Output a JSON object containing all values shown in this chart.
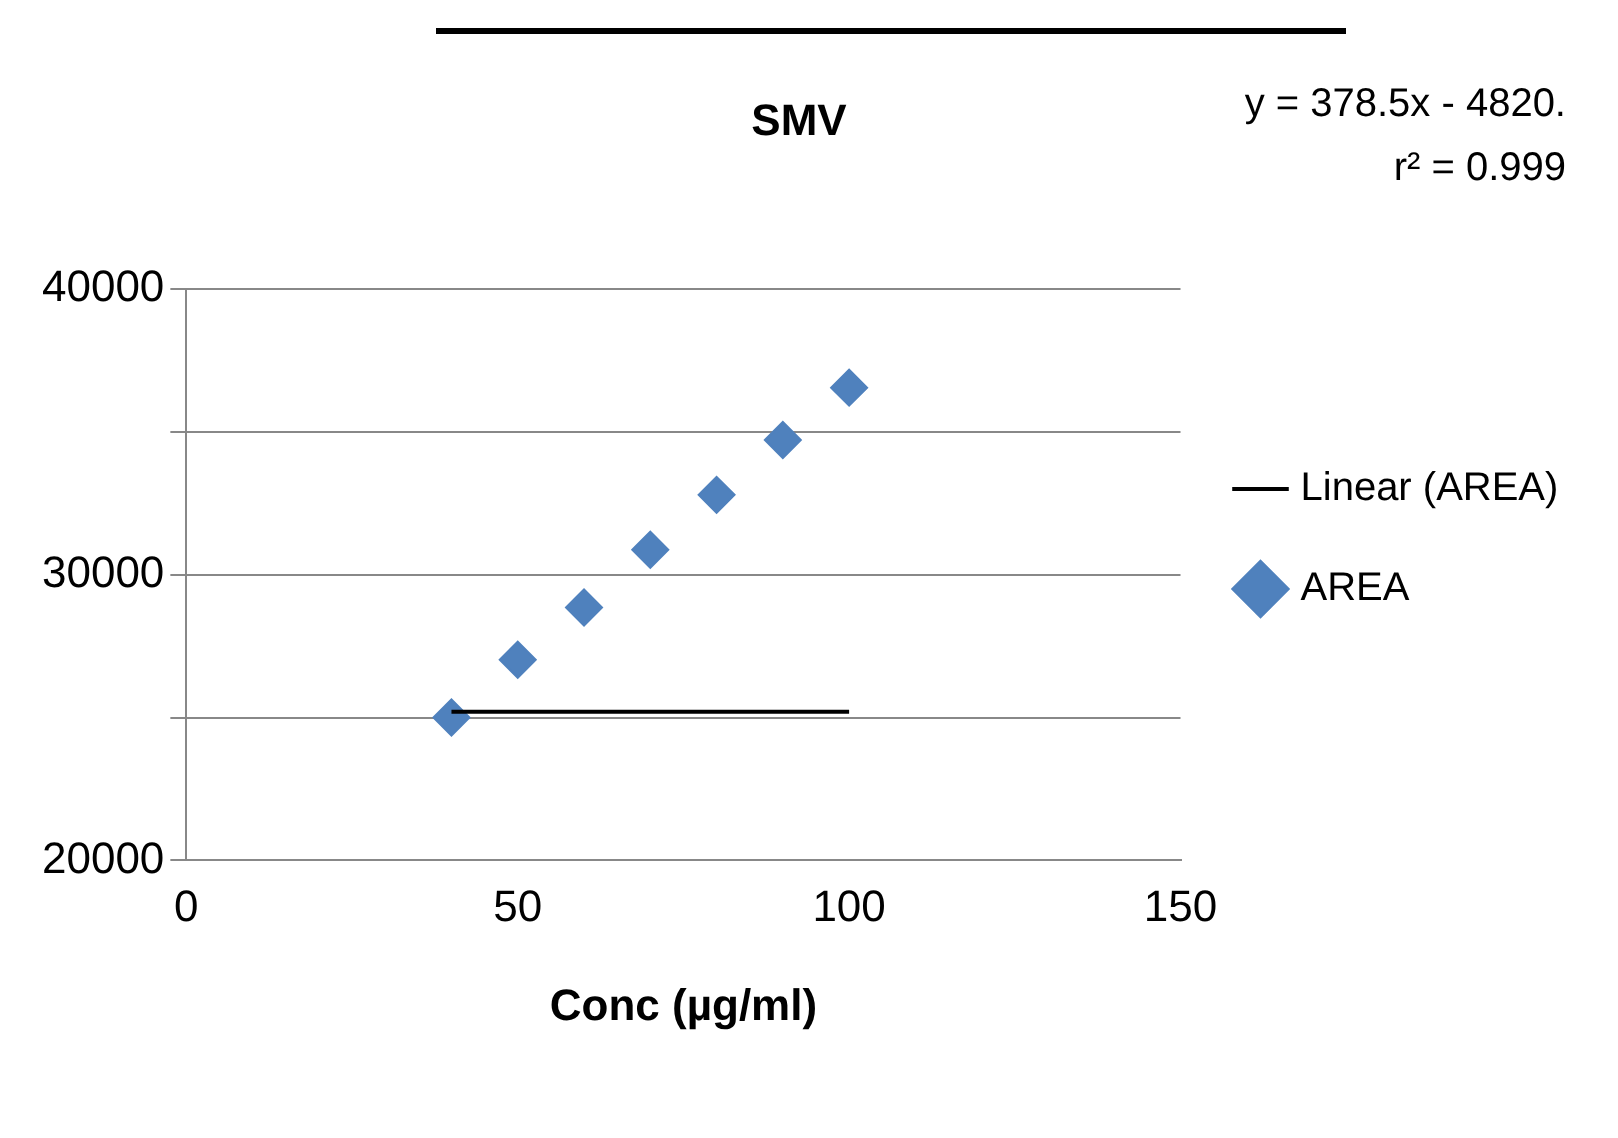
{
  "chart_data": {
    "type": "scatter",
    "title": "SMV",
    "xlabel": "Conc (µg/ml)",
    "annotations": [
      "y = 378.5x - 4820.",
      "r² = 0.999"
    ],
    "series": [
      {
        "name": "AREA",
        "color": "#4f81bd",
        "marker": "diamond",
        "x": [
          40,
          50,
          60,
          70,
          80,
          90,
          100
        ],
        "values": [
          25000,
          27020,
          28850,
          30870,
          32790,
          34710,
          36540
        ]
      },
      {
        "name": "Linear (AREA)",
        "type": "line",
        "color": "#000000",
        "marker": "none",
        "x": [
          40,
          100
        ],
        "values": [
          25200,
          25200
        ]
      }
    ],
    "xlim": [
      0,
      150
    ],
    "xticks": [
      0,
      50,
      100,
      150
    ],
    "ylim": [
      20000,
      40000
    ],
    "yticks": [
      20000,
      {
        "value": 25000,
        "label": null
      },
      30000,
      {
        "value": 35000,
        "label": null
      },
      40000
    ],
    "grid": "y",
    "legend": "right"
  }
}
